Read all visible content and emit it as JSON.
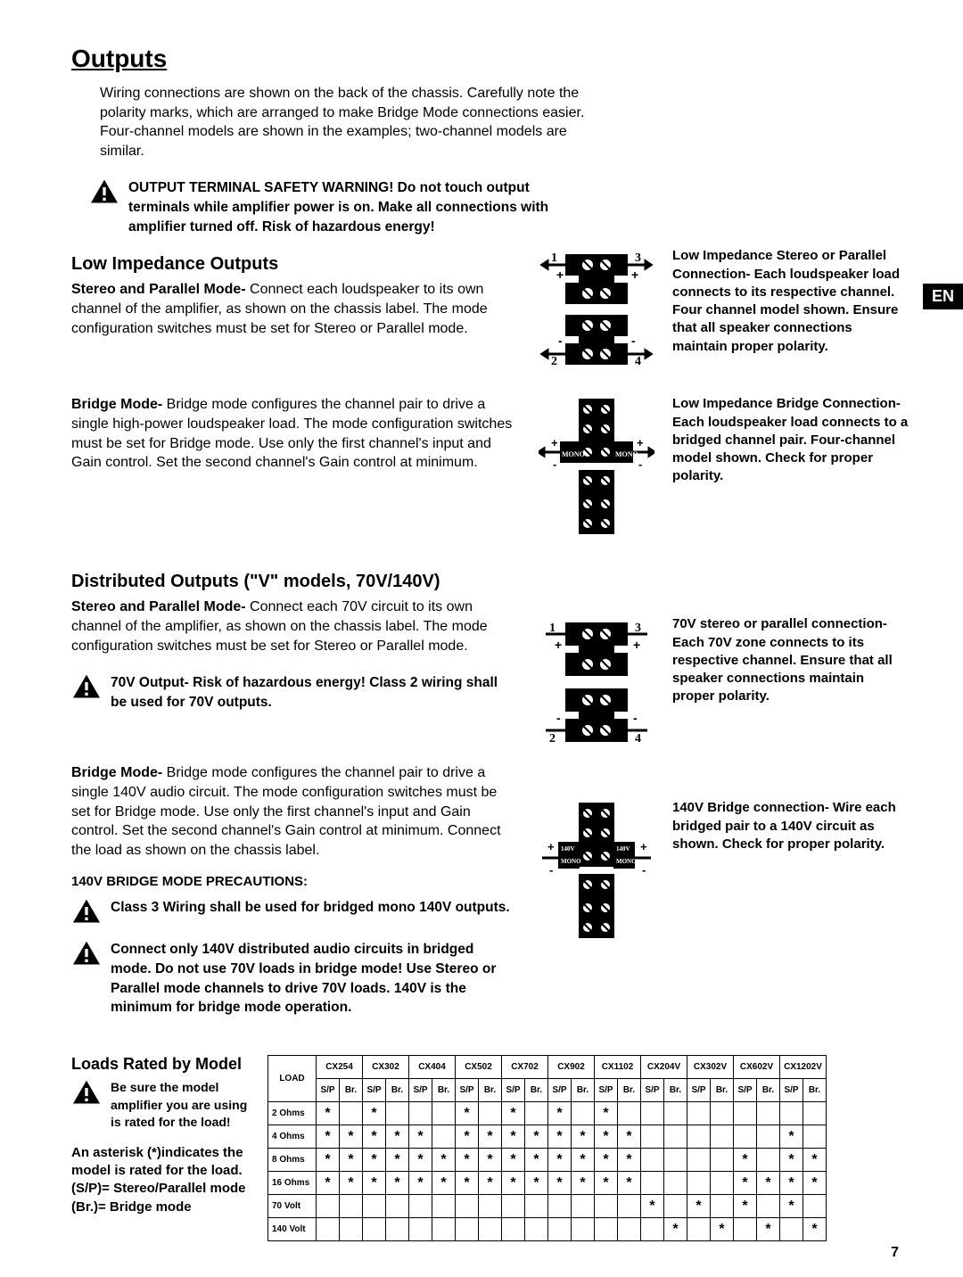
{
  "title": "Outputs",
  "intro": "Wiring connections are shown on the back of the chassis. Carefully note the polarity marks, which are arranged to make Bridge Mode connections easier. Four-channel models are shown in the examples; two-channel models are similar.",
  "safety_warning": "OUTPUT TERMINAL SAFETY WARNING! Do not touch output terminals while amplifier power is on. Make all connections with amplifier turned off. Risk of hazardous energy!",
  "en_badge": "EN",
  "low_imp": {
    "heading": "Low Impedance Outputs",
    "stereo_label": "Stereo and Parallel Mode-",
    "stereo_body": " Connect each loudspeaker to its own channel of the amplifier, as shown on the chassis label. The mode configuration switches must be set for Stereo or Parallel mode.",
    "caption1": "Low Impedance Stereo or Parallel Connection- Each loudspeaker load connects to its respective channel. Four channel model shown. Ensure that all speaker connections maintain proper polarity.",
    "bridge_label": "Bridge Mode-",
    "bridge_body": " Bridge mode configures the channel pair to drive a single high-power loudspeaker load. The mode configuration switches must be set for Bridge mode. Use only the first channel's input and Gain control. Set the second channel's Gain control at minimum.",
    "caption2": "Low Impedance Bridge Connection- Each loudspeaker load connects to a bridged channel pair. Four-channel model shown. Check for proper polarity."
  },
  "dist": {
    "heading": "Distributed Outputs (\"V\" models, 70V/140V)",
    "stereo_label": "Stereo and Parallel Mode-",
    "stereo_body": " Connect each 70V circuit to its own channel of the amplifier, as shown on the chassis label. The mode configuration switches must be set for Stereo or Parallel mode.",
    "warn70v": "70V Output- Risk of hazardous energy! Class 2 wiring shall be used for 70V outputs.",
    "caption1": "70V stereo or parallel connection- Each 70V zone connects to its respective channel. Ensure that all speaker connections maintain proper polarity.",
    "bridge_label": "Bridge Mode-",
    "bridge_body": " Bridge mode configures the channel pair to drive a single 140V audio circuit. The mode configuration switches must be set for Bridge mode. Use only the first channel's input and Gain control. Set the second channel's Gain control at minimum. Connect the load as shown on the chassis label.",
    "precautions_heading": "140V BRIDGE MODE PRECAUTIONS:",
    "warn_class3": "Class 3 Wiring shall be used for bridged mono 140V outputs.",
    "warn_140v_only": "Connect only 140V distributed audio circuits in bridged mode. Do not use 70V loads in bridge mode! Use Stereo or Parallel mode channels to drive 70V loads.  140V is the minimum for bridge mode operation.",
    "caption2": "140V Bridge connection- Wire each bridged pair to a 140V circuit as shown. Check for proper polarity."
  },
  "loads": {
    "heading": "Loads Rated by Model",
    "warn": "Be sure the model amplifier you are using is rated for the load!",
    "legend": "An asterisk (*)indicates the model is rated for the load. (S/P)= Stereo/Parallel mode (Br.)= Bridge mode",
    "models": [
      "CX254",
      "CX302",
      "CX404",
      "CX502",
      "CX702",
      "CX902",
      "CX1102",
      "CX204V",
      "CX302V",
      "CX602V",
      "CX1202V"
    ],
    "sub_headers": [
      "S/P",
      "Br."
    ],
    "row_header": "LOAD",
    "rows": [
      {
        "label": "2 Ohms",
        "cells": [
          "*",
          "",
          "*",
          "",
          "",
          "",
          "*",
          "",
          "*",
          "",
          "*",
          "",
          "*",
          "",
          "",
          "",
          "",
          "",
          "",
          "",
          "",
          ""
        ]
      },
      {
        "label": "4 Ohms",
        "cells": [
          "*",
          "*",
          "*",
          "*",
          "*",
          "",
          "*",
          "*",
          "*",
          "*",
          "*",
          "*",
          "*",
          "*",
          "",
          "",
          "",
          "",
          "",
          "",
          "*",
          ""
        ]
      },
      {
        "label": "8 Ohms",
        "cells": [
          "*",
          "*",
          "*",
          "*",
          "*",
          "*",
          "*",
          "*",
          "*",
          "*",
          "*",
          "*",
          "*",
          "*",
          "",
          "",
          "",
          "",
          "*",
          "",
          "*",
          "*"
        ]
      },
      {
        "label": "16 Ohms",
        "cells": [
          "*",
          "*",
          "*",
          "*",
          "*",
          "*",
          "*",
          "*",
          "*",
          "*",
          "*",
          "*",
          "*",
          "*",
          "",
          "",
          "",
          "",
          "*",
          "*",
          "*",
          "*"
        ]
      },
      {
        "label": "70 Volt",
        "cells": [
          "",
          "",
          "",
          "",
          "",
          "",
          "",
          "",
          "",
          "",
          "",
          "",
          "",
          "",
          "*",
          "",
          "*",
          "",
          "*",
          "",
          "*",
          ""
        ]
      },
      {
        "label": "140 Volt",
        "cells": [
          "",
          "",
          "",
          "",
          "",
          "",
          "",
          "",
          "",
          "",
          "",
          "",
          "",
          "",
          "",
          "*",
          "",
          "*",
          "",
          "*",
          "",
          "*"
        ]
      }
    ]
  },
  "page_number": "7",
  "diagram_labels": {
    "mono": "MONO",
    "v140": "140V",
    "ch1": "1",
    "ch2": "2",
    "ch3": "3",
    "ch4": "4"
  },
  "style": {
    "star": "*"
  }
}
